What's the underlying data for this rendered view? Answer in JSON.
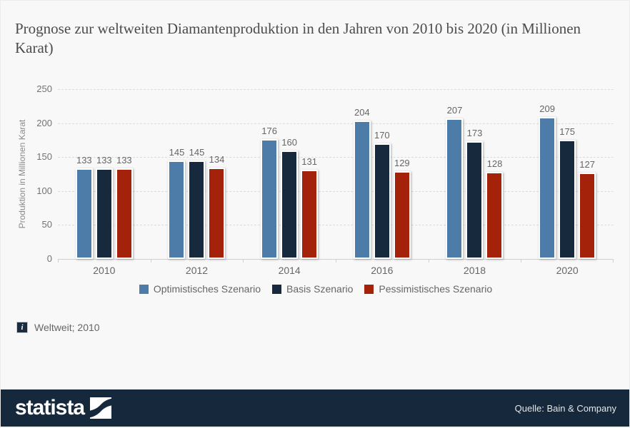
{
  "title": "Prognose zur weltweiten Diamantenproduktion in den Jahren von 2010 bis 2020 (in Millionen Karat)",
  "chart_data": {
    "type": "bar",
    "title": "Prognose zur weltweiten Diamantenproduktion in den Jahren von 2010 bis 2020 (in Millionen Karat)",
    "categories": [
      "2010",
      "2012",
      "2014",
      "2016",
      "2018",
      "2020"
    ],
    "series": [
      {
        "name": "Optimistisches Szenario",
        "color": "#4e7ca8",
        "values": [
          133,
          145,
          176,
          204,
          207,
          209
        ]
      },
      {
        "name": "Basis Szenario",
        "color": "#17293d",
        "values": [
          133,
          145,
          160,
          170,
          173,
          175
        ]
      },
      {
        "name": "Pessimistisches Szenario",
        "color": "#a42209",
        "values": [
          133,
          134,
          131,
          129,
          128,
          127
        ]
      }
    ],
    "xlabel": "",
    "ylabel": "Produktion in Millionen Karat",
    "ylim": [
      0,
      250
    ],
    "yticks": [
      0,
      50,
      100,
      150,
      200,
      250
    ],
    "grid": "horizontal-dashed",
    "legend_position": "bottom",
    "value_labels": true
  },
  "footnote": {
    "icon": "i",
    "text": "Weltweit; 2010"
  },
  "footer": {
    "logo_text": "statista",
    "source": "Quelle: Bain & Company",
    "bar_color": "#16283b"
  },
  "colors": {
    "optimistic_blue": "#4e7ca8",
    "base_navy": "#17293d",
    "pessimistic_red": "#a42209",
    "axis_line": "#c5d3de",
    "gridline": "#dcdcdc",
    "muted_text": "#666666"
  }
}
